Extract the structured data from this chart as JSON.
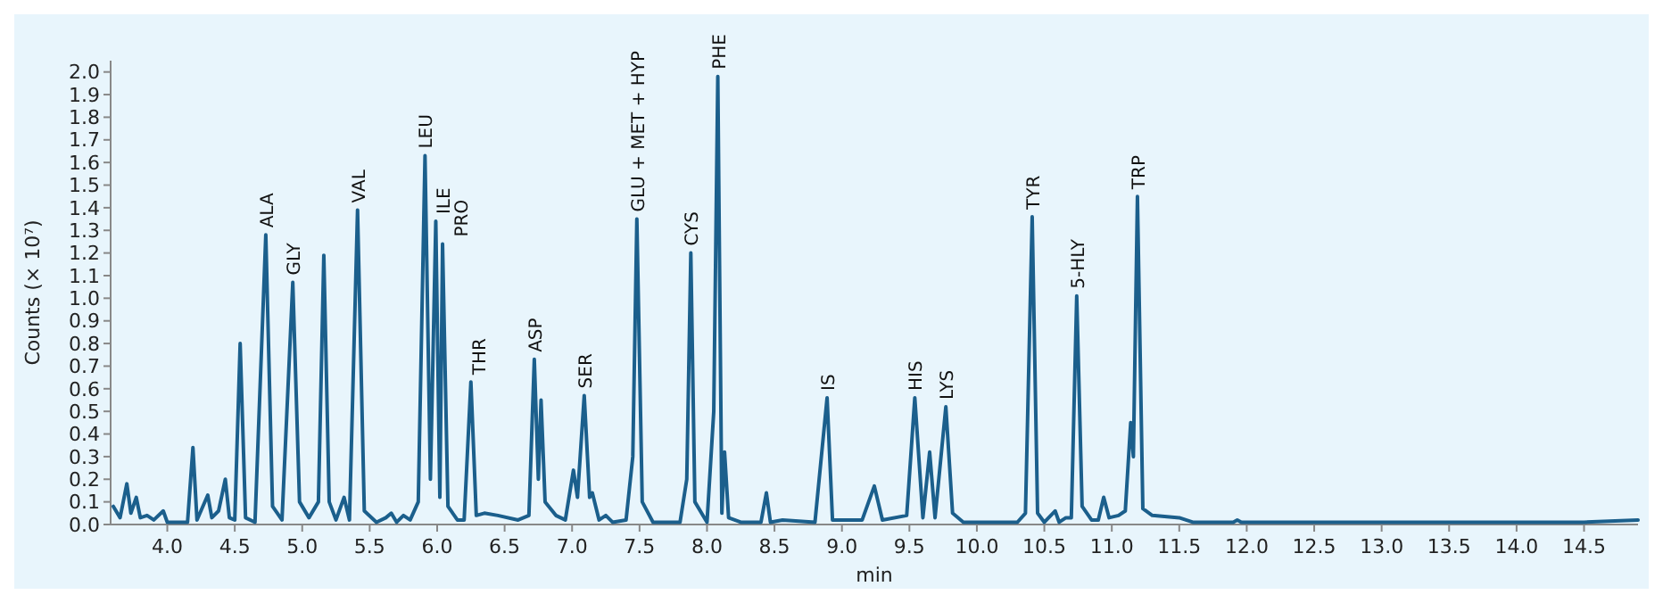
{
  "chart_data": {
    "type": "line",
    "xlabel": "min",
    "ylabel": "Counts (× 10⁷)",
    "xlim": [
      3.58,
      14.9
    ],
    "ylim": [
      0,
      2.05
    ],
    "xticks": [
      {
        "value": 4,
        "label": "4.0"
      },
      4.5,
      {
        "value": 5,
        "label": "5.0"
      },
      5.5,
      {
        "value": 6,
        "label": "6.0"
      },
      6.5,
      {
        "value": 7,
        "label": "7.0"
      },
      7.5,
      {
        "value": 8,
        "label": "8.0"
      },
      8.5,
      {
        "value": 9,
        "label": "9.0"
      },
      9.5,
      {
        "value": 10,
        "label": "10.0"
      },
      10.5,
      {
        "value": 11,
        "label": "11.0"
      },
      11.5,
      {
        "value": 12,
        "label": "12.0"
      },
      12.5,
      {
        "value": 13,
        "label": "13.0"
      },
      13.5,
      {
        "value": 14,
        "label": "14.0"
      },
      14.5
    ],
    "yticks": [
      {
        "value": 0,
        "label": "0.0"
      },
      0.1,
      0.2,
      0.3,
      0.4,
      0.5,
      0.6,
      0.7,
      0.8,
      0.9,
      {
        "value": 1,
        "label": "1.0"
      },
      1.1,
      1.2,
      1.3,
      1.4,
      1.5,
      1.6,
      1.7,
      1.8,
      1.9,
      {
        "value": 2,
        "label": "2.0"
      }
    ],
    "grid": false,
    "marker": "none",
    "line_style": "solid",
    "series": [
      {
        "color": "#1b5f8c",
        "x": [
          3.6,
          3.65,
          3.7,
          3.73,
          3.77,
          3.8,
          3.85,
          3.9,
          3.97,
          4.0,
          4.15,
          4.19,
          4.22,
          4.3,
          4.33,
          4.38,
          4.43,
          4.46,
          4.5,
          4.54,
          4.58,
          4.65,
          4.73,
          4.78,
          4.85,
          4.93,
          4.98,
          5.05,
          5.12,
          5.16,
          5.2,
          5.25,
          5.31,
          5.35,
          5.41,
          5.46,
          5.55,
          5.62,
          5.66,
          5.7,
          5.75,
          5.8,
          5.86,
          5.91,
          5.95,
          5.99,
          6.02,
          6.04,
          6.08,
          6.15,
          6.2,
          6.25,
          6.29,
          6.35,
          6.45,
          6.6,
          6.68,
          6.72,
          6.75,
          6.77,
          6.8,
          6.88,
          6.95,
          7.01,
          7.04,
          7.09,
          7.13,
          7.15,
          7.2,
          7.25,
          7.3,
          7.4,
          7.45,
          7.48,
          7.52,
          7.6,
          7.8,
          7.85,
          7.88,
          7.91,
          8.0,
          8.05,
          8.08,
          8.11,
          8.13,
          8.16,
          8.25,
          8.4,
          8.44,
          8.47,
          8.56,
          8.8,
          8.89,
          8.93,
          9.15,
          9.24,
          9.3,
          9.48,
          9.54,
          9.6,
          9.65,
          9.69,
          9.77,
          9.82,
          9.9,
          10.3,
          10.36,
          10.41,
          10.45,
          10.5,
          10.58,
          10.61,
          10.66,
          10.7,
          10.74,
          10.78,
          10.85,
          10.9,
          10.94,
          10.98,
          11.05,
          11.1,
          11.14,
          11.16,
          11.19,
          11.23,
          11.3,
          11.5,
          11.6,
          11.9,
          11.93,
          11.96,
          12.5,
          13.5,
          14.5,
          14.9
        ],
        "values": [
          0.08,
          0.03,
          0.18,
          0.05,
          0.12,
          0.03,
          0.04,
          0.02,
          0.06,
          0.01,
          0.01,
          0.34,
          0.02,
          0.13,
          0.03,
          0.06,
          0.2,
          0.03,
          0.02,
          0.8,
          0.03,
          0.01,
          1.28,
          0.08,
          0.02,
          1.07,
          0.1,
          0.03,
          0.1,
          1.19,
          0.1,
          0.02,
          0.12,
          0.02,
          1.39,
          0.06,
          0.01,
          0.03,
          0.05,
          0.01,
          0.04,
          0.02,
          0.1,
          1.63,
          0.2,
          1.34,
          0.12,
          1.24,
          0.08,
          0.02,
          0.02,
          0.63,
          0.04,
          0.05,
          0.04,
          0.02,
          0.04,
          0.73,
          0.2,
          0.55,
          0.1,
          0.04,
          0.02,
          0.24,
          0.12,
          0.57,
          0.12,
          0.14,
          0.02,
          0.04,
          0.01,
          0.02,
          0.3,
          1.35,
          0.1,
          0.01,
          0.01,
          0.2,
          1.2,
          0.1,
          0.01,
          0.5,
          1.98,
          0.05,
          0.32,
          0.03,
          0.01,
          0.01,
          0.14,
          0.01,
          0.02,
          0.01,
          0.56,
          0.02,
          0.02,
          0.17,
          0.02,
          0.04,
          0.56,
          0.03,
          0.32,
          0.03,
          0.52,
          0.05,
          0.01,
          0.01,
          0.05,
          1.36,
          0.05,
          0.01,
          0.06,
          0.01,
          0.03,
          0.03,
          1.01,
          0.08,
          0.02,
          0.02,
          0.12,
          0.03,
          0.04,
          0.06,
          0.45,
          0.3,
          1.45,
          0.07,
          0.04,
          0.03,
          0.01,
          0.01,
          0.02,
          0.01,
          0.01,
          0.01,
          0.01,
          0.02
        ]
      }
    ],
    "annotations": [
      {
        "text": "ALA",
        "x": 4.73,
        "y": 1.28
      },
      {
        "text": "GLY",
        "x": 4.93,
        "y": 1.07
      },
      {
        "text": "VAL",
        "x": 5.41,
        "y": 1.39
      },
      {
        "text": "LEU",
        "x": 5.91,
        "y": 1.63
      },
      {
        "text": "ILE",
        "x": 5.99,
        "y": 1.34
      },
      {
        "text": "PRO",
        "x": 6.04,
        "y": 1.24
      },
      {
        "text": "THR",
        "x": 6.25,
        "y": 0.63
      },
      {
        "text": "ASP",
        "x": 6.72,
        "y": 0.73
      },
      {
        "text": "SER",
        "x": 7.09,
        "y": 0.57
      },
      {
        "text": "GLU + MET + HYP",
        "x": 7.48,
        "y": 1.35
      },
      {
        "text": "CYS",
        "x": 7.88,
        "y": 1.2
      },
      {
        "text": "PHE",
        "x": 8.08,
        "y": 1.98
      },
      {
        "text": "IS",
        "x": 8.89,
        "y": 0.56
      },
      {
        "text": "HIS",
        "x": 9.54,
        "y": 0.56
      },
      {
        "text": "LYS",
        "x": 9.77,
        "y": 0.52
      },
      {
        "text": "TYR",
        "x": 10.41,
        "y": 1.36
      },
      {
        "text": "5-HLY",
        "x": 10.74,
        "y": 1.01
      },
      {
        "text": "TRP",
        "x": 11.19,
        "y": 1.45
      }
    ]
  }
}
